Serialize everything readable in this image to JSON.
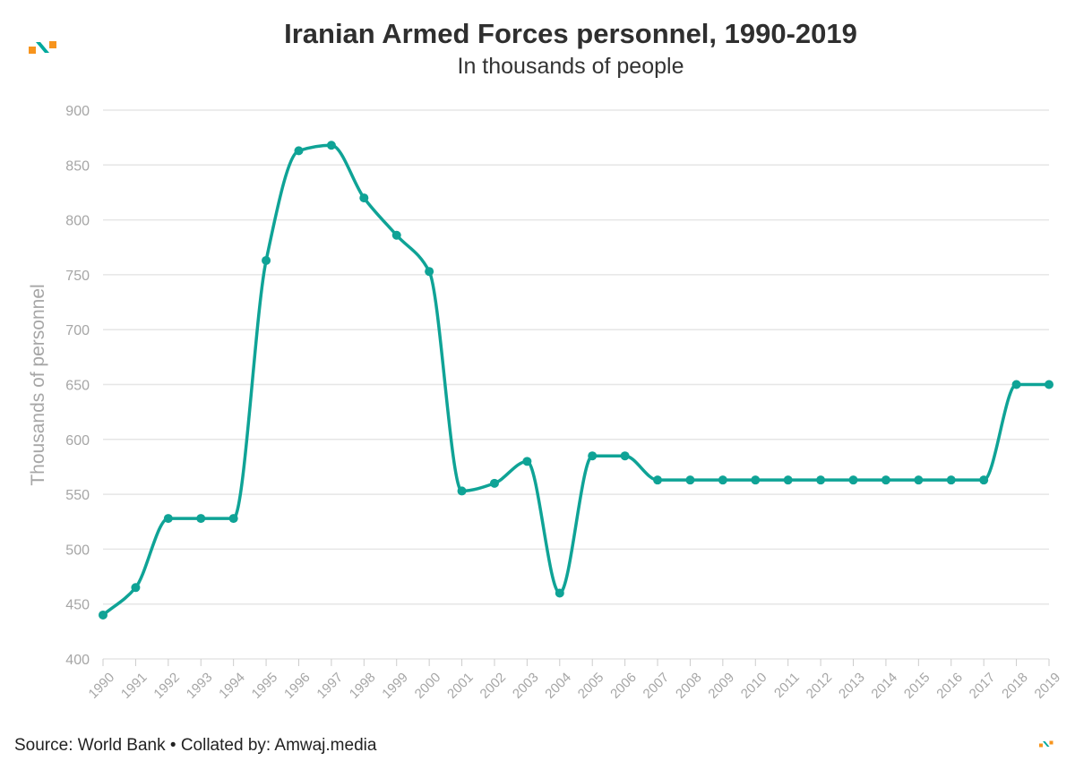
{
  "header": {
    "title": "Iranian Armed Forces personnel, 1990-2019",
    "subtitle": "In thousands of people"
  },
  "footer": {
    "source": "Source: World Bank • Collated by: Amwaj.media"
  },
  "logo": {
    "icon": "amwaj-logo-icon",
    "colors": [
      "#f7941d",
      "#00a99d"
    ]
  },
  "colors": {
    "line": "#0fa396",
    "grid": "#e6e6e6",
    "tick_text": "#a6a6a6"
  },
  "chart_data": {
    "type": "line",
    "title": "Iranian Armed Forces personnel, 1990-2019",
    "subtitle": "In thousands of people",
    "xlabel": "",
    "ylabel": "Thousands of personnel",
    "ylim": [
      400,
      900
    ],
    "yticks": [
      400,
      450,
      500,
      550,
      600,
      650,
      700,
      750,
      800,
      850,
      900
    ],
    "grid": true,
    "smooth": true,
    "categories": [
      "1990",
      "1991",
      "1992",
      "1993",
      "1994",
      "1995",
      "1996",
      "1997",
      "1998",
      "1999",
      "2000",
      "2001",
      "2002",
      "2003",
      "2004",
      "2005",
      "2006",
      "2007",
      "2008",
      "2009",
      "2010",
      "2011",
      "2012",
      "2013",
      "2014",
      "2015",
      "2016",
      "2017",
      "2018",
      "2019"
    ],
    "series": [
      {
        "color": "#0fa396",
        "values": [
          440,
          465,
          528,
          528,
          528,
          763,
          863,
          868,
          820,
          786,
          753,
          553,
          560,
          580,
          460,
          585,
          585,
          563,
          563,
          563,
          563,
          563,
          563,
          563,
          563,
          563,
          563,
          563,
          650,
          650
        ]
      }
    ]
  }
}
